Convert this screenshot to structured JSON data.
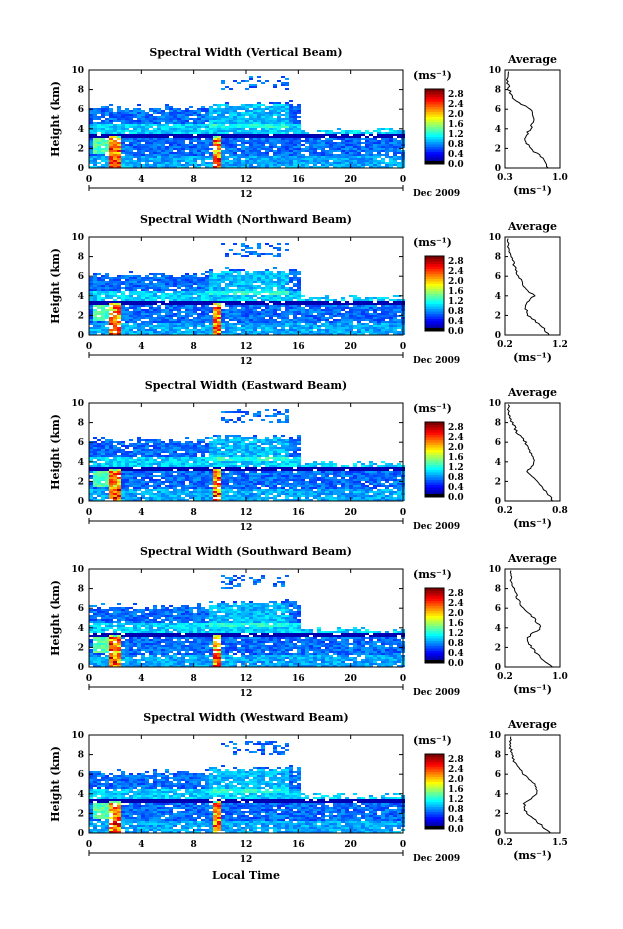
{
  "shared": {
    "ylabel": "Height (km)",
    "xlabel": "Local Time",
    "units_label": "(ms⁻¹)",
    "date_label": "Dec 2009",
    "day_marker": "12",
    "avg_title": "Average",
    "x_ticks": [
      "0",
      "4",
      "8",
      "12",
      "16",
      "20",
      "0"
    ],
    "y_ticks": [
      "0",
      "2",
      "4",
      "6",
      "8",
      "10"
    ],
    "cbar_ticks": [
      "0.0",
      "0.4",
      "0.8",
      "1.2",
      "1.6",
      "2.0",
      "2.4",
      "2.8"
    ]
  },
  "panels": [
    {
      "title": "Spectral Width (Vertical Beam)",
      "avg_xticks": [
        "0.3",
        "1.0"
      ]
    },
    {
      "title": "Spectral Width (Northward Beam)",
      "avg_xticks": [
        "0.2",
        "1.2"
      ]
    },
    {
      "title": "Spectral Width (Eastward Beam)",
      "avg_xticks": [
        "0.2",
        "0.8"
      ]
    },
    {
      "title": "Spectral Width (Southward Beam)",
      "avg_xticks": [
        "0.2",
        "1.0"
      ]
    },
    {
      "title": "Spectral Width (Westward Beam)",
      "avg_xticks": [
        "0.2",
        "1.5"
      ]
    }
  ],
  "chart_data": [
    {
      "type": "heatmap",
      "title": "Spectral Width (Vertical Beam)",
      "xlabel": "",
      "ylabel": "Height (km)",
      "xlim": [
        0,
        24
      ],
      "ylim": [
        0,
        10
      ],
      "colorbar_range": [
        0,
        2.8
      ],
      "colorbar_units": "(ms⁻¹)",
      "avg_profile": {
        "xlim": [
          0.3,
          1.0
        ],
        "heights": [
          0,
          1,
          2,
          3,
          4,
          5,
          6,
          7,
          8,
          9
        ],
        "values": [
          0.85,
          0.78,
          0.62,
          0.55,
          0.62,
          0.68,
          0.62,
          0.4,
          0.35,
          0.33
        ]
      }
    },
    {
      "type": "heatmap",
      "title": "Spectral Width (Northward Beam)",
      "xlabel": "",
      "ylabel": "Height (km)",
      "xlim": [
        0,
        24
      ],
      "ylim": [
        0,
        10
      ],
      "colorbar_range": [
        0,
        2.8
      ],
      "colorbar_units": "(ms⁻¹)",
      "avg_profile": {
        "xlim": [
          0.2,
          1.2
        ],
        "heights": [
          0,
          1,
          2,
          3,
          4,
          5,
          6,
          7,
          8,
          9
        ],
        "values": [
          1.0,
          0.85,
          0.62,
          0.55,
          0.72,
          0.55,
          0.45,
          0.38,
          0.3,
          0.25
        ]
      }
    },
    {
      "type": "heatmap",
      "title": "Spectral Width (Eastward Beam)",
      "xlabel": "",
      "ylabel": "Height (km)",
      "xlim": [
        0,
        24
      ],
      "ylim": [
        0,
        10
      ],
      "colorbar_range": [
        0,
        2.8
      ],
      "colorbar_units": "(ms⁻¹)",
      "avg_profile": {
        "xlim": [
          0.2,
          0.8
        ],
        "heights": [
          0,
          1,
          2,
          3,
          4,
          5,
          6,
          7,
          8,
          9
        ],
        "values": [
          0.72,
          0.65,
          0.55,
          0.45,
          0.52,
          0.48,
          0.42,
          0.33,
          0.28,
          0.24
        ]
      }
    },
    {
      "type": "heatmap",
      "title": "Spectral Width (Southward Beam)",
      "xlabel": "",
      "ylabel": "Height (km)",
      "xlim": [
        0,
        24
      ],
      "ylim": [
        0,
        10
      ],
      "colorbar_range": [
        0,
        2.8
      ],
      "colorbar_units": "(ms⁻¹)",
      "avg_profile": {
        "xlim": [
          0.2,
          1.0
        ],
        "heights": [
          0,
          1,
          2,
          3,
          4,
          5,
          6,
          7,
          8,
          9
        ],
        "values": [
          0.88,
          0.72,
          0.58,
          0.52,
          0.72,
          0.62,
          0.45,
          0.38,
          0.33,
          0.28
        ]
      }
    },
    {
      "type": "heatmap",
      "title": "Spectral Width (Westward Beam)",
      "xlabel": "Local Time",
      "ylabel": "Height (km)",
      "xlim": [
        0,
        24
      ],
      "ylim": [
        0,
        10
      ],
      "colorbar_range": [
        0,
        2.8
      ],
      "colorbar_units": "(ms⁻¹)",
      "avg_profile": {
        "xlim": [
          0.2,
          1.5
        ],
        "heights": [
          0,
          1,
          2,
          3,
          4,
          5,
          6,
          7,
          8,
          9
        ],
        "values": [
          1.25,
          1.0,
          0.7,
          0.65,
          0.95,
          0.9,
          0.65,
          0.45,
          0.35,
          0.32
        ]
      }
    }
  ]
}
